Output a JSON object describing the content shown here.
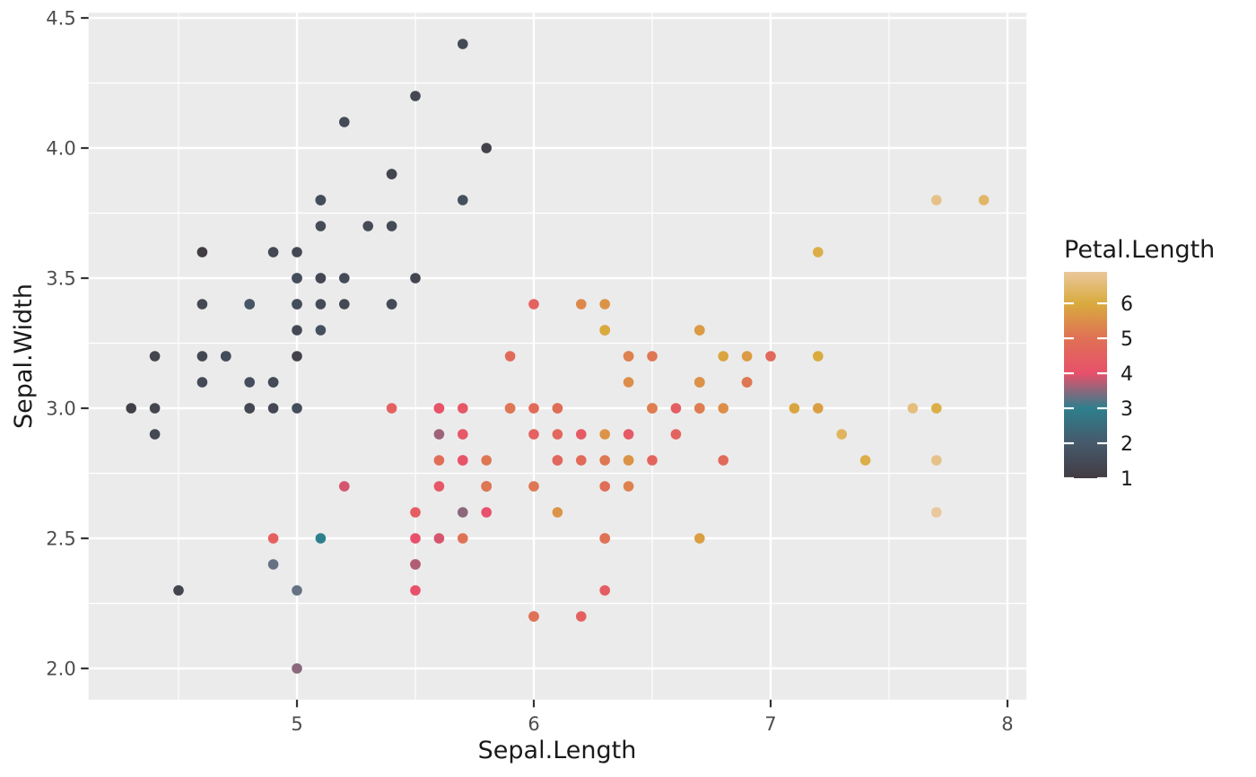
{
  "theme": {
    "background": "#FFFFFF",
    "panel_bg": "#EBEBEB",
    "grid_color": "#FFFFFF",
    "axis_tick_color": "#333333",
    "tick_label_color": "#4D4D4D",
    "title_color": "#1A1A1A"
  },
  "chart_data": {
    "type": "scatter",
    "title": "",
    "xlabel": "Sepal.Length",
    "ylabel": "Sepal.Width",
    "x_domain": [
      4.12,
      8.08
    ],
    "y_domain": [
      1.88,
      4.52
    ],
    "x_ticks": [
      5,
      6,
      7,
      8
    ],
    "x_tick_labels": [
      "5",
      "6",
      "7",
      "8"
    ],
    "y_ticks": [
      2.0,
      2.5,
      3.0,
      3.5,
      4.0,
      4.5
    ],
    "y_tick_labels": [
      "2.0",
      "2.5",
      "3.0",
      "3.5",
      "4.0",
      "4.5"
    ],
    "x_minor_ticks": [
      4.5,
      5.5,
      6.5,
      7.5
    ],
    "y_minor_ticks": [
      2.25,
      2.75,
      3.25,
      3.75,
      4.25
    ],
    "grid": true,
    "legend_position": "right",
    "colorbar": {
      "title": "Petal.Length",
      "domain": [
        1.0,
        6.9
      ],
      "ticks": [
        1,
        2,
        3,
        4,
        5,
        6
      ],
      "tick_labels": [
        "1",
        "2",
        "3",
        "4",
        "5",
        "6"
      ],
      "gradient_stops": [
        [
          1.0,
          "#423C43"
        ],
        [
          2.0,
          "#46596B"
        ],
        [
          3.0,
          "#2E7F8D"
        ],
        [
          4.0,
          "#E8506B"
        ],
        [
          5.0,
          "#DF7155"
        ],
        [
          6.0,
          "#D9AB3D"
        ],
        [
          6.9,
          "#EAC79C"
        ]
      ]
    },
    "columns": [
      "Sepal.Length",
      "Sepal.Width",
      "Petal.Length"
    ],
    "points": [
      [
        5.1,
        3.5,
        1.4
      ],
      [
        4.9,
        3.0,
        1.4
      ],
      [
        4.7,
        3.2,
        1.3
      ],
      [
        4.6,
        3.1,
        1.5
      ],
      [
        5.0,
        3.6,
        1.4
      ],
      [
        5.4,
        3.9,
        1.7
      ],
      [
        4.6,
        3.4,
        1.4
      ],
      [
        5.0,
        3.4,
        1.5
      ],
      [
        4.4,
        2.9,
        1.4
      ],
      [
        4.9,
        3.1,
        1.5
      ],
      [
        5.4,
        3.7,
        1.5
      ],
      [
        4.8,
        3.4,
        1.6
      ],
      [
        4.8,
        3.0,
        1.4
      ],
      [
        4.3,
        3.0,
        1.1
      ],
      [
        5.8,
        4.0,
        1.2
      ],
      [
        5.7,
        4.4,
        1.5
      ],
      [
        5.4,
        3.9,
        1.3
      ],
      [
        5.1,
        3.5,
        1.4
      ],
      [
        5.7,
        3.8,
        1.7
      ],
      [
        5.1,
        3.8,
        1.5
      ],
      [
        5.4,
        3.4,
        1.7
      ],
      [
        5.1,
        3.7,
        1.5
      ],
      [
        4.6,
        3.6,
        1.0
      ],
      [
        5.1,
        3.3,
        1.7
      ],
      [
        4.8,
        3.4,
        1.9
      ],
      [
        5.0,
        3.0,
        1.6
      ],
      [
        5.0,
        3.4,
        1.6
      ],
      [
        5.2,
        3.5,
        1.5
      ],
      [
        5.2,
        3.4,
        1.4
      ],
      [
        4.7,
        3.2,
        1.6
      ],
      [
        4.8,
        3.1,
        1.6
      ],
      [
        5.4,
        3.4,
        1.5
      ],
      [
        5.2,
        4.1,
        1.5
      ],
      [
        5.5,
        4.2,
        1.4
      ],
      [
        4.9,
        3.1,
        1.5
      ],
      [
        5.0,
        3.2,
        1.2
      ],
      [
        5.5,
        3.5,
        1.3
      ],
      [
        4.9,
        3.6,
        1.4
      ],
      [
        4.4,
        3.0,
        1.3
      ],
      [
        5.1,
        3.4,
        1.5
      ],
      [
        5.0,
        3.5,
        1.3
      ],
      [
        4.5,
        2.3,
        1.3
      ],
      [
        4.4,
        3.2,
        1.3
      ],
      [
        5.0,
        3.5,
        1.6
      ],
      [
        5.1,
        3.8,
        1.9
      ],
      [
        4.8,
        3.0,
        1.4
      ],
      [
        5.1,
        3.8,
        1.6
      ],
      [
        4.6,
        3.2,
        1.4
      ],
      [
        5.3,
        3.7,
        1.5
      ],
      [
        5.0,
        3.3,
        1.4
      ],
      [
        7.0,
        3.2,
        4.7
      ],
      [
        6.4,
        3.2,
        4.5
      ],
      [
        6.9,
        3.1,
        4.9
      ],
      [
        5.5,
        2.3,
        4.0
      ],
      [
        6.5,
        2.8,
        4.6
      ],
      [
        5.7,
        2.8,
        4.5
      ],
      [
        6.3,
        3.3,
        4.7
      ],
      [
        4.9,
        2.4,
        3.3
      ],
      [
        6.6,
        2.9,
        4.6
      ],
      [
        5.2,
        2.7,
        3.9
      ],
      [
        5.0,
        2.0,
        3.5
      ],
      [
        5.9,
        3.0,
        4.2
      ],
      [
        6.0,
        2.2,
        4.0
      ],
      [
        6.1,
        2.9,
        4.7
      ],
      [
        5.6,
        2.9,
        3.6
      ],
      [
        6.7,
        3.1,
        4.4
      ],
      [
        5.6,
        3.0,
        4.5
      ],
      [
        5.8,
        2.7,
        4.1
      ],
      [
        6.2,
        2.2,
        4.5
      ],
      [
        5.6,
        2.5,
        3.9
      ],
      [
        5.9,
        3.2,
        4.8
      ],
      [
        6.1,
        2.8,
        4.0
      ],
      [
        6.3,
        2.5,
        4.9
      ],
      [
        6.1,
        2.8,
        4.7
      ],
      [
        6.4,
        2.9,
        4.3
      ],
      [
        6.6,
        3.0,
        4.4
      ],
      [
        6.8,
        2.8,
        4.8
      ],
      [
        6.7,
        3.0,
        5.0
      ],
      [
        6.0,
        2.9,
        4.5
      ],
      [
        5.7,
        2.6,
        3.5
      ],
      [
        5.5,
        2.4,
        3.8
      ],
      [
        5.5,
        2.4,
        3.7
      ],
      [
        5.8,
        2.7,
        3.9
      ],
      [
        6.0,
        2.7,
        5.1
      ],
      [
        5.4,
        3.0,
        4.5
      ],
      [
        6.0,
        3.4,
        4.5
      ],
      [
        6.7,
        3.1,
        4.7
      ],
      [
        6.3,
        2.3,
        4.4
      ],
      [
        5.6,
        3.0,
        4.1
      ],
      [
        5.5,
        2.5,
        4.0
      ],
      [
        5.5,
        2.6,
        4.4
      ],
      [
        6.1,
        3.0,
        4.6
      ],
      [
        5.8,
        2.6,
        4.0
      ],
      [
        5.0,
        2.3,
        3.3
      ],
      [
        5.6,
        2.7,
        4.2
      ],
      [
        5.7,
        3.0,
        4.2
      ],
      [
        5.7,
        2.9,
        4.2
      ],
      [
        6.2,
        2.9,
        4.3
      ],
      [
        5.1,
        2.5,
        3.0
      ],
      [
        5.7,
        2.8,
        4.1
      ],
      [
        6.3,
        3.3,
        6.0
      ],
      [
        5.8,
        2.7,
        5.1
      ],
      [
        7.1,
        3.0,
        5.9
      ],
      [
        6.3,
        2.9,
        5.6
      ],
      [
        6.5,
        3.0,
        5.8
      ],
      [
        7.6,
        3.0,
        6.6
      ],
      [
        4.9,
        2.5,
        4.5
      ],
      [
        7.3,
        2.9,
        6.3
      ],
      [
        6.7,
        2.5,
        5.8
      ],
      [
        7.2,
        3.6,
        6.1
      ],
      [
        6.5,
        3.2,
        5.1
      ],
      [
        6.4,
        2.7,
        5.3
      ],
      [
        6.8,
        3.0,
        5.5
      ],
      [
        5.7,
        2.5,
        5.0
      ],
      [
        5.8,
        2.8,
        5.1
      ],
      [
        6.4,
        3.2,
        5.3
      ],
      [
        6.5,
        3.0,
        5.5
      ],
      [
        7.7,
        3.8,
        6.7
      ],
      [
        7.7,
        2.6,
        6.9
      ],
      [
        6.0,
        2.2,
        5.0
      ],
      [
        6.9,
        3.2,
        5.7
      ],
      [
        5.6,
        2.8,
        4.9
      ],
      [
        7.7,
        2.8,
        6.7
      ],
      [
        6.3,
        2.7,
        4.9
      ],
      [
        6.7,
        3.3,
        5.7
      ],
      [
        7.2,
        3.2,
        6.0
      ],
      [
        6.2,
        2.8,
        4.8
      ],
      [
        6.1,
        3.0,
        4.9
      ],
      [
        6.4,
        2.8,
        5.6
      ],
      [
        7.2,
        3.0,
        5.8
      ],
      [
        7.4,
        2.8,
        6.1
      ],
      [
        7.9,
        3.8,
        6.4
      ],
      [
        6.4,
        2.8,
        5.6
      ],
      [
        6.3,
        2.8,
        5.1
      ],
      [
        6.1,
        2.6,
        5.6
      ],
      [
        7.7,
        3.0,
        6.1
      ],
      [
        6.3,
        3.4,
        5.6
      ],
      [
        6.4,
        3.1,
        5.5
      ],
      [
        6.0,
        3.0,
        4.8
      ],
      [
        6.9,
        3.1,
        5.4
      ],
      [
        6.7,
        3.1,
        5.6
      ],
      [
        6.9,
        3.1,
        5.1
      ],
      [
        5.8,
        2.7,
        5.1
      ],
      [
        6.8,
        3.2,
        5.9
      ],
      [
        6.7,
        3.3,
        5.7
      ],
      [
        6.7,
        3.0,
        5.2
      ],
      [
        6.3,
        2.5,
        5.0
      ],
      [
        6.5,
        3.0,
        5.2
      ],
      [
        6.2,
        3.4,
        5.4
      ],
      [
        5.9,
        3.0,
        5.1
      ]
    ]
  }
}
